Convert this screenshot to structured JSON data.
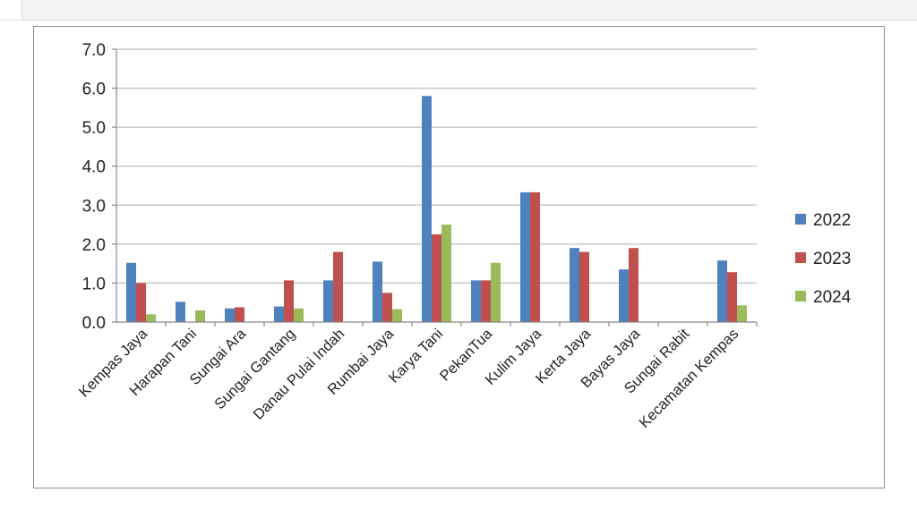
{
  "chart_data": {
    "type": "bar",
    "title": "",
    "xlabel": "",
    "ylabel": "",
    "ylim": [
      0,
      7
    ],
    "yticks": [
      "0.0",
      "1.0",
      "2.0",
      "3.0",
      "4.0",
      "5.0",
      "6.0",
      "7.0"
    ],
    "grid": true,
    "legend_position": "right",
    "categories": [
      "Kempas Jaya",
      "Harapan Tani",
      "Sungai Ara",
      "Sungai Gantang",
      "Danau Pulai Indah",
      "Rumbai Jaya",
      "Karya Tani",
      "PekanTua",
      "Kulim Jaya",
      "Kerta Jaya",
      "Bayas Jaya",
      "Sungai Rabit",
      "Kecamatan Kempas"
    ],
    "series": [
      {
        "name": "2022",
        "color": "#4f81bd",
        "values": [
          1.52,
          0.52,
          0.35,
          0.4,
          1.07,
          1.55,
          5.8,
          1.07,
          3.33,
          1.9,
          1.35,
          0,
          1.58
        ]
      },
      {
        "name": "2023",
        "color": "#c0504d",
        "values": [
          1.0,
          0,
          0.38,
          1.07,
          1.8,
          0.75,
          2.25,
          1.07,
          3.33,
          1.8,
          1.9,
          0,
          1.28
        ]
      },
      {
        "name": "2024",
        "color": "#9bbb59",
        "values": [
          0.2,
          0.3,
          0,
          0.35,
          0,
          0.33,
          2.5,
          1.52,
          0,
          0,
          0,
          0,
          0.43
        ]
      }
    ]
  }
}
